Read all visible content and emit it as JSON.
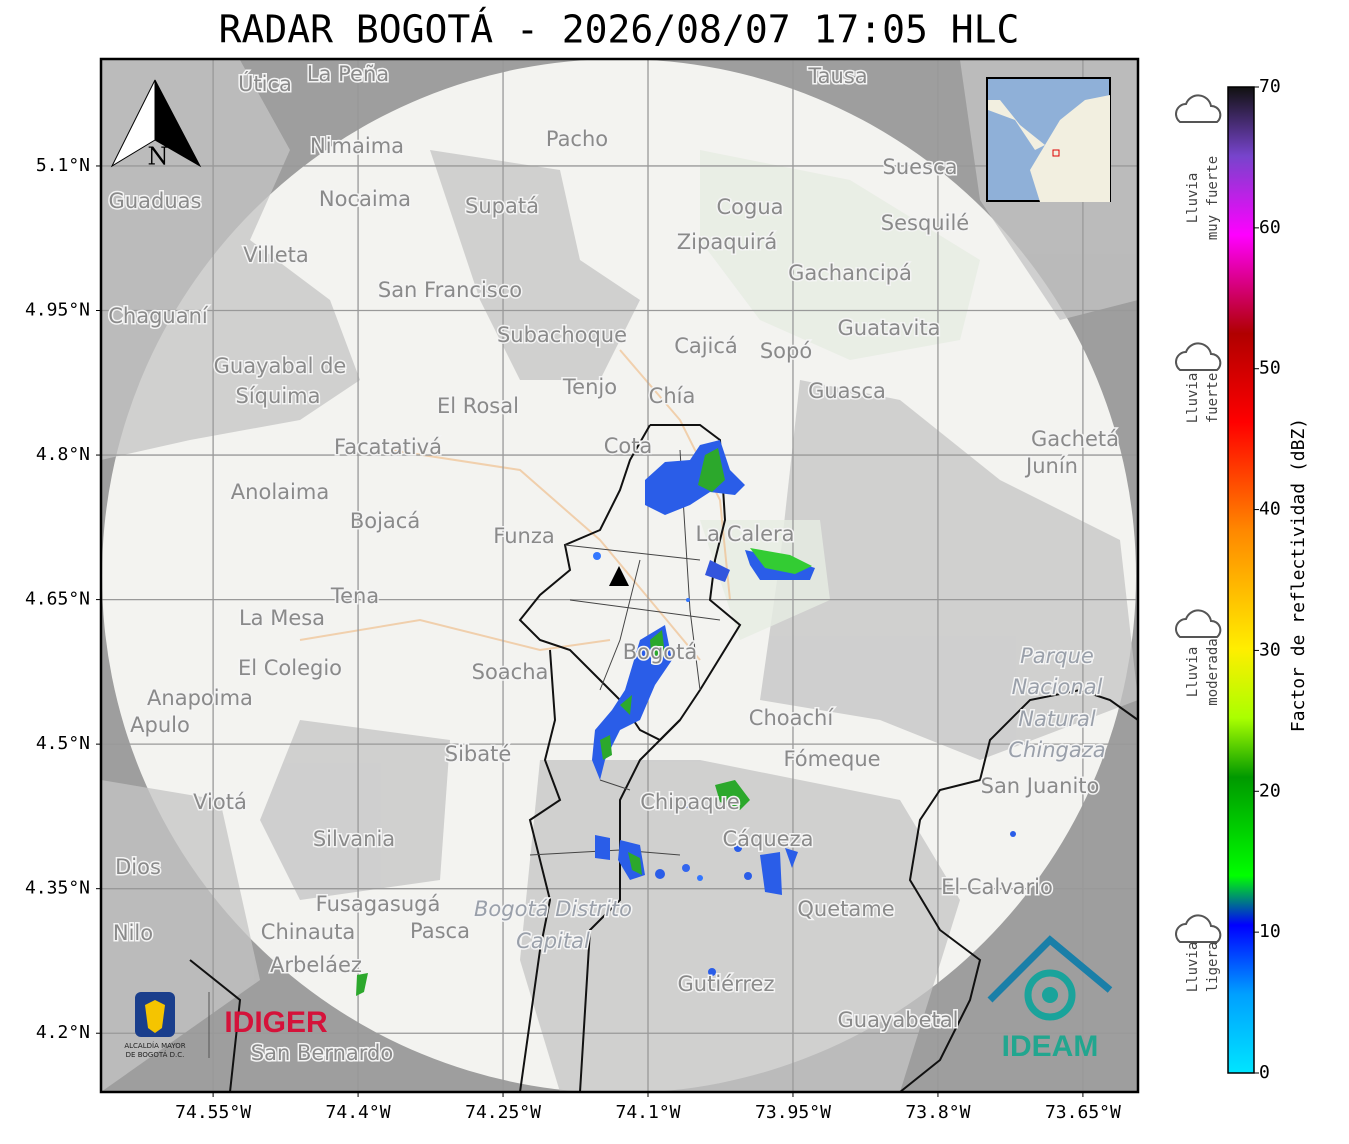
{
  "title": "RADAR BOGOTÁ - 2026/08/07 17:05 HLC",
  "map": {
    "xlim": [
      -74.666,
      -73.593
    ],
    "ylim": [
      4.139,
      5.211
    ],
    "xticks": [
      {
        "value": -74.55,
        "label": "74.55°W"
      },
      {
        "value": -74.4,
        "label": "74.4°W"
      },
      {
        "value": -74.25,
        "label": "74.25°W"
      },
      {
        "value": -74.1,
        "label": "74.1°W"
      },
      {
        "value": -73.95,
        "label": "73.95°W"
      },
      {
        "value": -73.8,
        "label": "73.8°W"
      },
      {
        "value": -73.65,
        "label": "73.65°W"
      }
    ],
    "yticks": [
      {
        "value": 4.2,
        "label": "4.2°N"
      },
      {
        "value": 4.35,
        "label": "4.35°N"
      },
      {
        "value": 4.5,
        "label": "4.5°N"
      },
      {
        "value": 4.65,
        "label": "4.65°N"
      },
      {
        "value": 4.8,
        "label": "4.8°N"
      },
      {
        "value": 4.95,
        "label": "4.95°N"
      },
      {
        "value": 5.1,
        "label": "5.1°N"
      }
    ],
    "places": [
      "La Peña",
      "Útica",
      "Tausa",
      "Pacho",
      "Nimaima",
      "Nocaima",
      "Supatá",
      "Guaduas",
      "Cogua",
      "Suesca",
      "Sesquilé",
      "Zipaquirá",
      "Villeta",
      "Gachancipá",
      "San Francisco",
      "Chaguaní",
      "Guatavita",
      "Subachoque",
      "Cajicá",
      "Sopó",
      "Guayabal de",
      "Síquima",
      "Tenjo",
      "Guasca",
      "Chía",
      "El Rosal",
      "Facatativá",
      "Cota",
      "Gachetá",
      "Junín",
      "Anolaima",
      "Bojacá",
      "La Calera",
      "Funza",
      "Tena",
      "La Mesa",
      "Bogotá",
      "Soacha",
      "El Colegio",
      "Anapoima",
      "Apulo",
      "Choachí",
      "Sibaté",
      "Fómeque",
      "San Juanito",
      "Viotá",
      "Chipaque",
      "Silvania",
      "Cáqueza",
      "Dios",
      "El Calvario",
      "Fusagasugá",
      "Quetame",
      "Nilo",
      "Chinauta",
      "Pasca",
      "Arbeláez",
      "Gutiérrez",
      "Guayabetal",
      "San Bernardo"
    ],
    "italic_places": [
      "Parque",
      "Nacional",
      "Natural",
      "Chingaza",
      "Bogotá Distrito",
      "Capital"
    ]
  },
  "north": "N",
  "logos": {
    "alcaldia": [
      "ALCALDÍA MAYOR",
      "DE BOGOTÁ D.C."
    ],
    "idiger": "IDIGER",
    "ideam": "IDEAM"
  },
  "colorbar": {
    "label": "Factor de reflectividad (dBZ)",
    "clim": [
      0,
      70
    ],
    "ticks": [
      0,
      10,
      20,
      30,
      40,
      50,
      60,
      70
    ]
  },
  "legend": [
    [
      "Lluvia",
      "muy fuerte"
    ],
    [
      "Lluvia",
      "fuerte"
    ],
    [
      "Lluvia",
      "moderada"
    ],
    [
      "Lluvia",
      "ligera"
    ]
  ]
}
